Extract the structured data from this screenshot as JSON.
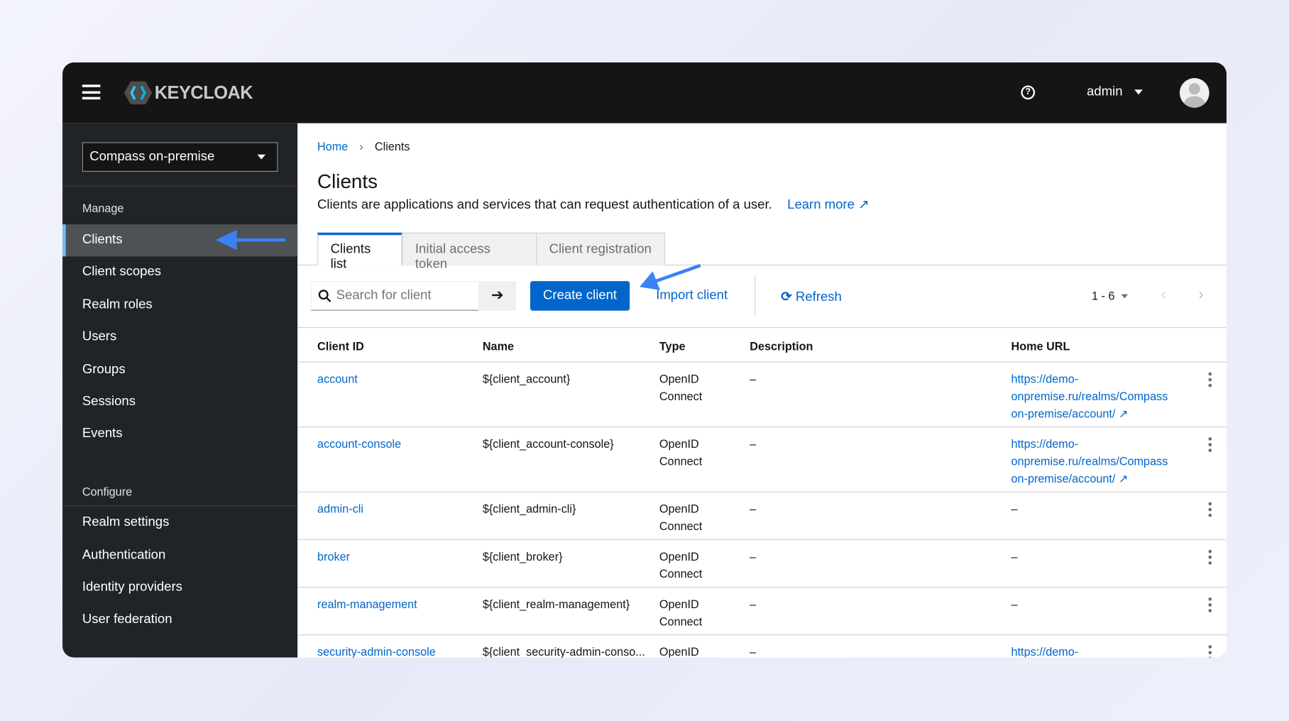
{
  "header": {
    "logo": "KEYCLOAK",
    "user": "admin"
  },
  "sidebar": {
    "realm": "Compass on-premise",
    "manage_label": "Manage",
    "manage_items": [
      "Clients",
      "Client scopes",
      "Realm roles",
      "Users",
      "Groups",
      "Sessions",
      "Events"
    ],
    "configure_label": "Configure",
    "configure_items": [
      "Realm settings",
      "Authentication",
      "Identity providers",
      "User federation"
    ]
  },
  "breadcrumb": {
    "home": "Home",
    "current": "Clients"
  },
  "page": {
    "title": "Clients",
    "description": "Clients are applications and services that can request authentication of a user.",
    "learn_more": "Learn more"
  },
  "tabs": [
    "Clients list",
    "Initial access token",
    "Client registration"
  ],
  "toolbar": {
    "search_placeholder": "Search for client",
    "create": "Create client",
    "import": "Import client",
    "refresh": "Refresh",
    "pagination": "1 - 6"
  },
  "table": {
    "columns": [
      "Client ID",
      "Name",
      "Type",
      "Description",
      "Home URL"
    ],
    "rows": [
      {
        "id": "account",
        "name": "${client_account}",
        "type": [
          "OpenID",
          "Connect"
        ],
        "desc": "–",
        "url": [
          "https://demo-",
          "onpremise.ru/realms/Compass",
          "on-premise/account/"
        ]
      },
      {
        "id": "account-console",
        "name": "${client_account-console}",
        "type": [
          "OpenID",
          "Connect"
        ],
        "desc": "–",
        "url": [
          "https://demo-",
          "onpremise.ru/realms/Compass",
          "on-premise/account/"
        ]
      },
      {
        "id": "admin-cli",
        "name": "${client_admin-cli}",
        "type": [
          "OpenID",
          "Connect"
        ],
        "desc": "–",
        "url": [
          "–"
        ]
      },
      {
        "id": "broker",
        "name": "${client_broker}",
        "type": [
          "OpenID",
          "Connect"
        ],
        "desc": "–",
        "url": [
          "–"
        ]
      },
      {
        "id": "realm-management",
        "name": "${client_realm-management}",
        "type": [
          "OpenID",
          "Connect"
        ],
        "desc": "–",
        "url": [
          "–"
        ]
      },
      {
        "id": "security-admin-console",
        "name": "${client_security-admin-conso...",
        "type": [
          "OpenID"
        ],
        "desc": "–",
        "url": [
          "https://demo-"
        ]
      }
    ]
  },
  "colors": {
    "accent": "#0066cc",
    "header": "#151515",
    "sidebar": "#212427",
    "annotation_arrow": "#3b82f6"
  }
}
